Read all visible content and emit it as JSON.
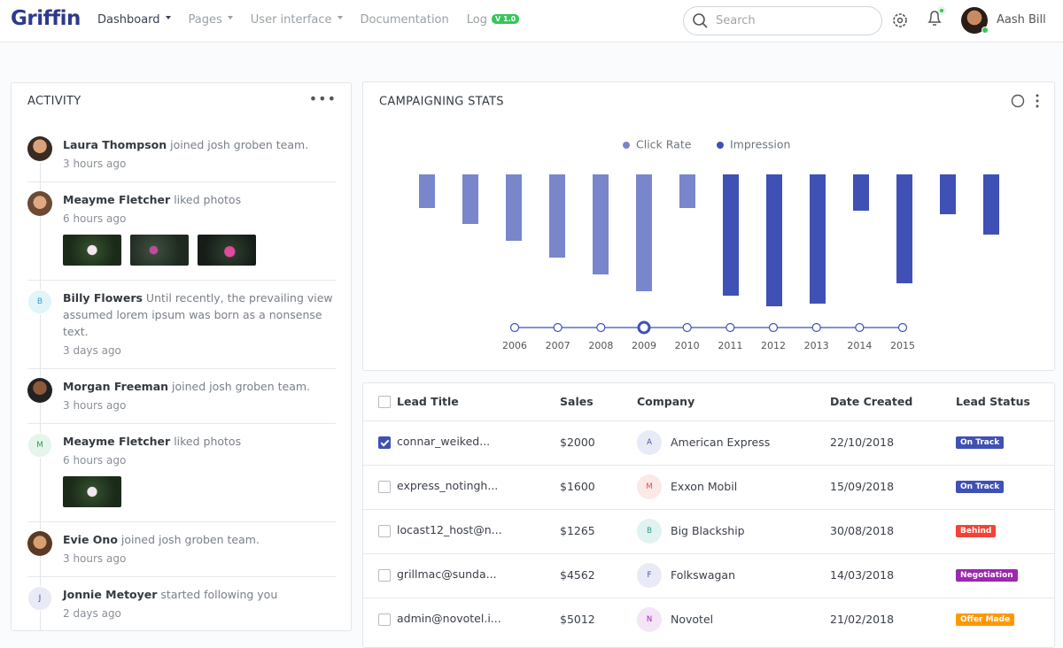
{
  "navbar": {
    "logo": "Griffin",
    "menu": [
      {
        "label": "Dashboard",
        "dropdown": true,
        "active": true
      },
      {
        "label": "Pages",
        "dropdown": true
      },
      {
        "label": "User interface",
        "dropdown": true
      },
      {
        "label": "Documentation",
        "dropdown": false
      },
      {
        "label": "Log",
        "dropdown": false,
        "badge": "V 1.0"
      }
    ],
    "search_placeholder": "Search",
    "user": "Aash Bill"
  },
  "activity": {
    "title": "ACTIVITY",
    "items": [
      {
        "name": "Laura Thompson",
        "action": "joined josh groben team.",
        "time": "3 hours ago"
      },
      {
        "name": "Meayme Fletcher",
        "action": "liked photos",
        "time": "6 hours ago"
      },
      {
        "initial": "B",
        "name": "Billy Flowers",
        "action": "Until recently, the prevailing view assumed lorem ipsum was born as a nonsense text.",
        "time": "3 days ago"
      },
      {
        "name": "Morgan Freeman",
        "action": "joined josh groben team.",
        "time": "3 hours ago"
      },
      {
        "initial": "M",
        "name": "Meayme Fletcher",
        "action": "liked photos",
        "time": "6 hours ago"
      },
      {
        "name": "Evie Ono",
        "action": "joined josh groben team.",
        "time": "3 hours ago"
      },
      {
        "initial": "J",
        "name": "Jonnie Metoyer",
        "action": "started following you",
        "time": "2 days ago"
      }
    ]
  },
  "chart_data": {
    "type": "bar",
    "title": "CAMPAIGNING STATS",
    "legend": "top",
    "y_inverted": true,
    "categories": [
      null,
      null,
      null,
      null,
      null,
      null,
      null,
      null,
      null,
      null,
      null,
      null,
      null,
      null
    ],
    "series": [
      {
        "name": "Click Rate",
        "color": "#7986cb",
        "values": [
          38,
          56,
          75,
          94,
          113,
          132,
          38,
          null,
          null,
          null,
          null,
          null,
          null,
          null
        ]
      },
      {
        "name": "Impression",
        "color": "#3f51b5",
        "values": [
          null,
          null,
          null,
          null,
          null,
          null,
          null,
          137,
          149,
          146,
          41,
          123,
          45,
          68
        ]
      }
    ],
    "ylim": [
      0,
      160
    ],
    "timeline": [
      "2006",
      "2007",
      "2008",
      "2009",
      "2010",
      "2011",
      "2012",
      "2013",
      "2014",
      "2015"
    ],
    "timeline_selected": 3
  },
  "leads": {
    "columns": [
      "Lead Title",
      "Sales",
      "Company",
      "Date Created",
      "Lead Status"
    ],
    "rows": [
      {
        "checked": true,
        "title": "connar_weiked...",
        "sales": "$2000",
        "initial": "A",
        "company": "American Express",
        "date": "22/10/2018",
        "status": "On Track",
        "status_color": "#3f51b5"
      },
      {
        "checked": false,
        "title": "express_notingh...",
        "sales": "$1600",
        "initial": "M",
        "company": "Exxon Mobil",
        "date": "15/09/2018",
        "status": "On Track",
        "status_color": "#3f51b5"
      },
      {
        "checked": false,
        "title": "locast12_host@n...",
        "sales": "$1265",
        "initial": "B",
        "company": "Big Blackship",
        "date": "30/08/2018",
        "status": "Behind",
        "status_color": "#f44336"
      },
      {
        "checked": false,
        "title": "grillmac@sunda...",
        "sales": "$4562",
        "initial": "F",
        "company": "Folkswagan",
        "date": "14/03/2018",
        "status": "Negotiation",
        "status_color": "#9c27b0"
      },
      {
        "checked": false,
        "title": "admin@novotel.i...",
        "sales": "$5012",
        "initial": "N",
        "company": "Novotel",
        "date": "21/02/2018",
        "status": "Offer Made",
        "status_color": "#ff9800"
      }
    ]
  }
}
